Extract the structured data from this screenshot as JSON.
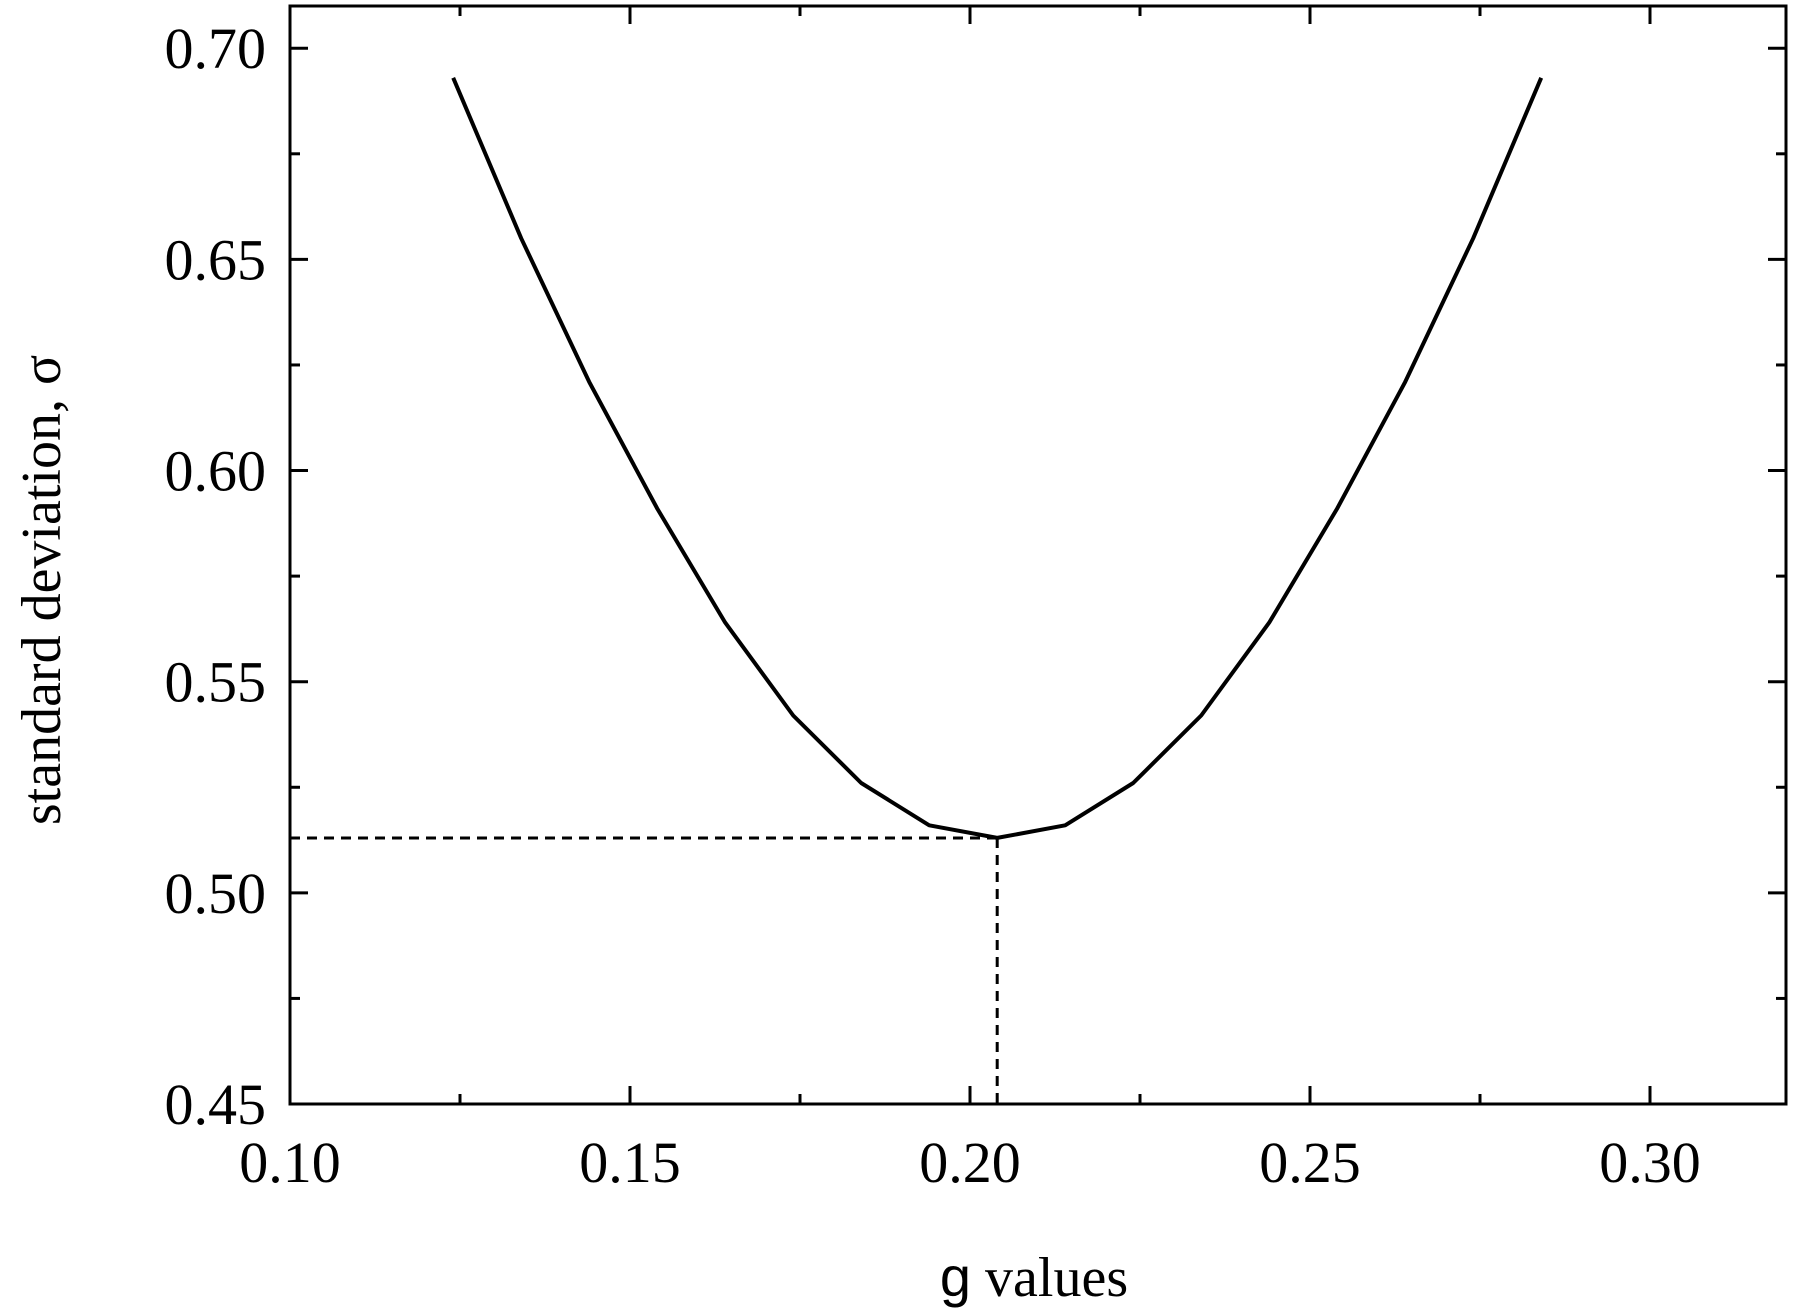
{
  "chart_data": {
    "type": "line",
    "xlabel_symbol": "g",
    "xlabel_rest": " values",
    "ylabel": "standard deviation, σ",
    "xlim": [
      0.1,
      0.32
    ],
    "ylim": [
      0.45,
      0.71
    ],
    "x_ticks": [
      0.1,
      0.15,
      0.2,
      0.25,
      0.3
    ],
    "x_tick_labels": [
      "0.10",
      "0.15",
      "0.20",
      "0.25",
      "0.30"
    ],
    "x_minor_ticks": [
      0.125,
      0.175,
      0.225,
      0.275
    ],
    "y_ticks": [
      0.45,
      0.5,
      0.55,
      0.6,
      0.65,
      0.7
    ],
    "y_tick_labels": [
      "0.45",
      "0.50",
      "0.55",
      "0.60",
      "0.65",
      "0.70"
    ],
    "y_minor_ticks": [
      0.475,
      0.525,
      0.575,
      0.625,
      0.675
    ],
    "grid": false,
    "series": [
      {
        "x": [
          0.124,
          0.134,
          0.144,
          0.154,
          0.164,
          0.174,
          0.184,
          0.194,
          0.204,
          0.214,
          0.224,
          0.234,
          0.244,
          0.254,
          0.264,
          0.274,
          0.284
        ],
        "y": [
          0.693,
          0.655,
          0.621,
          0.591,
          0.564,
          0.542,
          0.526,
          0.516,
          0.513,
          0.516,
          0.526,
          0.542,
          0.564,
          0.591,
          0.621,
          0.655,
          0.693
        ]
      }
    ],
    "annotations": {
      "min_point": {
        "x": 0.204,
        "y": 0.513
      }
    }
  }
}
